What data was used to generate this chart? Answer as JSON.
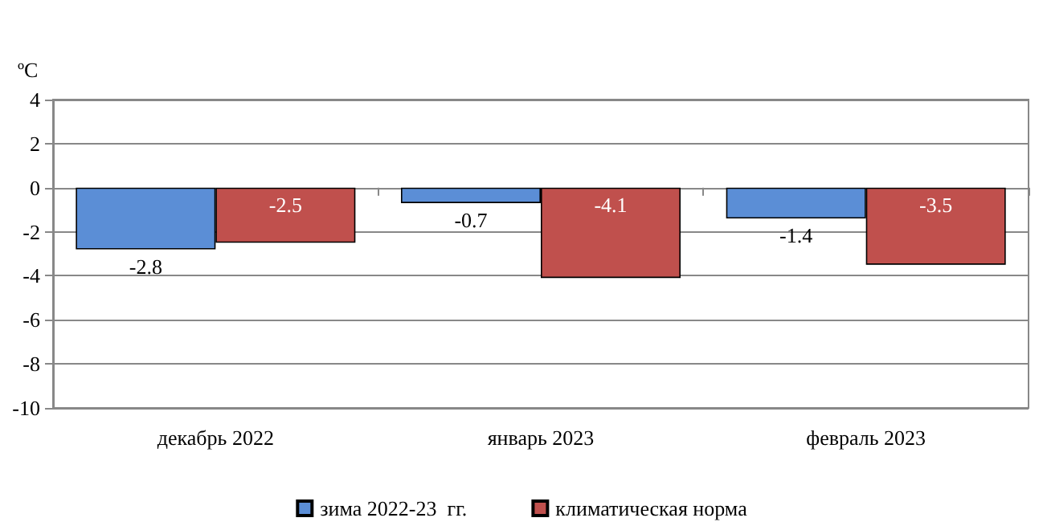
{
  "chart_data": {
    "type": "bar",
    "ylabel": "ºC",
    "categories": [
      "декабрь 2022",
      "январь 2023",
      "февраль 2023"
    ],
    "series": [
      {
        "name": "зима 2022-23  гг.",
        "color": "#5b8ed6",
        "values": [
          -2.8,
          -0.7,
          -1.4
        ]
      },
      {
        "name": "климатическая норма",
        "color": "#c0504d",
        "values": [
          -2.5,
          -4.1,
          -3.5
        ]
      }
    ],
    "ylim": [
      -10,
      4
    ],
    "yticks": [
      -10,
      -8,
      -6,
      -4,
      -2,
      0,
      2,
      4
    ],
    "grid": "y",
    "legend": "bottom",
    "data_labels": true
  }
}
